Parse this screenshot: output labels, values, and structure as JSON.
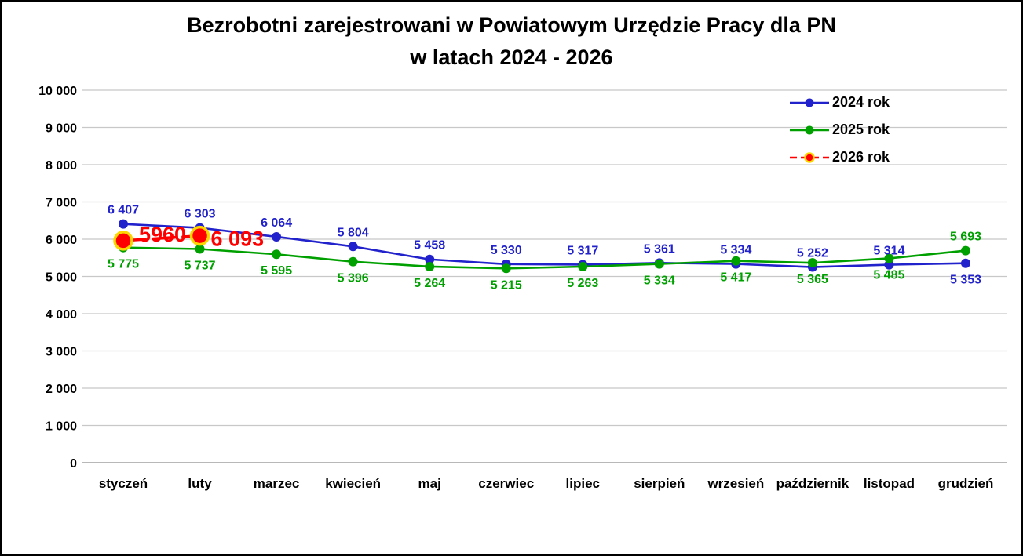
{
  "chart_data": {
    "type": "line",
    "title": "Bezrobotni zarejestrowani w Powiatowym Urzędzie Pracy dla PN",
    "subtitle": "w latach 2024 - 2026",
    "grid": true,
    "legend_position": "top-right",
    "categories": [
      "styczeń",
      "luty",
      "marzec",
      "kwiecień",
      "maj",
      "czerwiec",
      "lipiec",
      "sierpień",
      "wrzesień",
      "październik",
      "listopad",
      "grudzień"
    ],
    "y_axis": {
      "min": 0,
      "max": 10000,
      "step": 1000,
      "tick_labels": [
        "0",
        "1 000",
        "2 000",
        "3 000",
        "4 000",
        "5 000",
        "6 000",
        "7 000",
        "8 000",
        "9 000",
        "10 000"
      ]
    },
    "series": [
      {
        "name": "2024 rok",
        "color": "#2222cc",
        "line_style": "solid",
        "line_width": 2.6,
        "marker_radius": 6,
        "label_font_size": 16,
        "values": [
          6407,
          6303,
          6064,
          5804,
          5458,
          5330,
          5317,
          5361,
          5334,
          5252,
          5314,
          5353
        ],
        "labels": [
          "6 407",
          "6 303",
          "6 064",
          "5 804",
          "5 458",
          "5 330",
          "5 317",
          "5 361",
          "5 334",
          "5 252",
          "5 314",
          "5 353"
        ],
        "label_placement": [
          "above",
          "above",
          "above",
          "above",
          "above",
          "above",
          "above",
          "above",
          "above",
          "above",
          "above",
          "below"
        ]
      },
      {
        "name": "2025 rok",
        "color": "#00a000",
        "line_style": "solid",
        "line_width": 2.6,
        "marker_radius": 6,
        "label_font_size": 16,
        "values": [
          5775,
          5737,
          5595,
          5396,
          5264,
          5215,
          5263,
          5334,
          5417,
          5365,
          5485,
          5693
        ],
        "labels": [
          "5 775",
          "5 737",
          "5 595",
          "5 396",
          "5 264",
          "5 215",
          "5 263",
          "5 334",
          "5 417",
          "5 365",
          "5 485",
          "5 693"
        ],
        "label_placement": [
          "below",
          "below",
          "below",
          "below",
          "below",
          "below",
          "below",
          "below",
          "below",
          "below",
          "below",
          "above"
        ]
      },
      {
        "name": "2026 rok",
        "color": "#ff0000",
        "marker_ring_color": "#ffd700",
        "line_style": "dashed",
        "line_width": 3.5,
        "marker_radius": 11,
        "label_font_size": 27,
        "values": [
          5960,
          6093,
          null,
          null,
          null,
          null,
          null,
          null,
          null,
          null,
          null,
          null
        ],
        "labels": [
          "5960",
          "6 093",
          "",
          "",
          "",
          "",
          "",
          "",
          "",
          "",
          "",
          ""
        ],
        "label_placement": [
          "right",
          "right",
          "",
          "",
          "",
          "",
          "",
          "",
          "",
          "",
          "",
          ""
        ],
        "label_offsets": [
          [
            20,
            1
          ],
          [
            14,
            13
          ]
        ]
      }
    ],
    "colors": {
      "gridline": "#c8c8c8",
      "axis_line": "#a0a0a0",
      "text": "#000000",
      "background": "#ffffff"
    }
  }
}
